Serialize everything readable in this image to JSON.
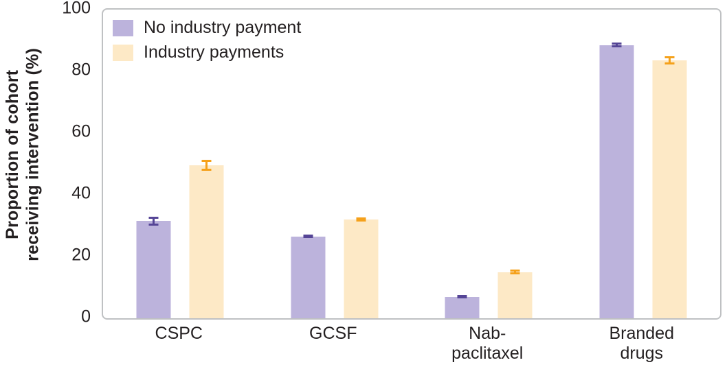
{
  "chart_data": {
    "type": "bar",
    "title": "",
    "categories": [
      "CSPC",
      "GCSF",
      "Nab-\npaclitaxel",
      "Branded\ndrugs"
    ],
    "series": [
      {
        "name": "No industry payment",
        "color": "#bcb3dc",
        "error_color": "#554596",
        "values": [
          31.5,
          26.5,
          7,
          88.5
        ],
        "errors": [
          1.5,
          0.6,
          0.5,
          0.8
        ]
      },
      {
        "name": "Industry payments",
        "color": "#fde9c6",
        "error_color": "#f5a11b",
        "values": [
          49.5,
          32,
          15,
          83.5
        ],
        "errors": [
          1.8,
          0.6,
          0.7,
          1.3
        ]
      }
    ],
    "xlabel": "",
    "ylabel": "Proportion of cohort\nreceiving intervention (%)",
    "ylim": [
      0,
      100
    ],
    "yticks": [
      0,
      20,
      40,
      60,
      80,
      100
    ],
    "grid": false,
    "legend_position": "top-left",
    "frame_color": "#bfc1c3",
    "text_color": "#231f20"
  }
}
